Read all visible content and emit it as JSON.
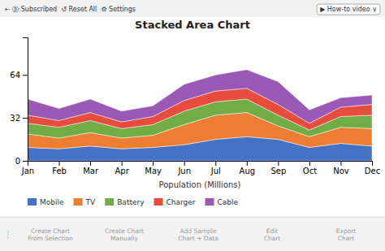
{
  "chart_data": {
    "type": "area",
    "stacked": true,
    "title": "Stacked Area Chart",
    "xlabel": "Population (Millions)",
    "categories": [
      "Jan",
      "Feb",
      "Mar",
      "Apr",
      "May",
      "Jun",
      "Jul",
      "Aug",
      "Sep",
      "Oct",
      "Nov",
      "Dec"
    ],
    "series": [
      {
        "name": "Mobile",
        "color": "#4472C4",
        "values": [
          10,
          9,
          11,
          9,
          10,
          12,
          16,
          18,
          16,
          10,
          13,
          11
        ]
      },
      {
        "name": "TV",
        "color": "#ED7D31",
        "values": [
          10,
          8,
          10,
          8,
          9,
          15,
          18,
          18,
          10,
          8,
          12,
          13
        ]
      },
      {
        "name": "Battery",
        "color": "#70AD47",
        "values": [
          8,
          8,
          9,
          7,
          8,
          10,
          10,
          10,
          8,
          5,
          8,
          10
        ]
      },
      {
        "name": "Charger",
        "color": "#E74C3C",
        "values": [
          6,
          5,
          6,
          5,
          6,
          8,
          8,
          8,
          8,
          5,
          7,
          8
        ]
      },
      {
        "name": "Cable",
        "color": "#9B59B6",
        "values": [
          12,
          9,
          10,
          8,
          8,
          12,
          12,
          14,
          17,
          10,
          7,
          7
        ]
      }
    ],
    "ylim": [
      0,
      92
    ],
    "yticks": [
      0,
      32,
      64
    ],
    "grid": false,
    "legend": "bottom",
    "annotations": [
      "← ⓢ Subscribed  ↺ Reset All  ⚙ Settings",
      "▶ How-to video ∨",
      "Create Chart\nFrom Selection",
      "Create Chart\nManually",
      "Add Sample\nChart + Data",
      "Edit\nChart",
      "Export\nChart",
      "⋮"
    ]
  }
}
